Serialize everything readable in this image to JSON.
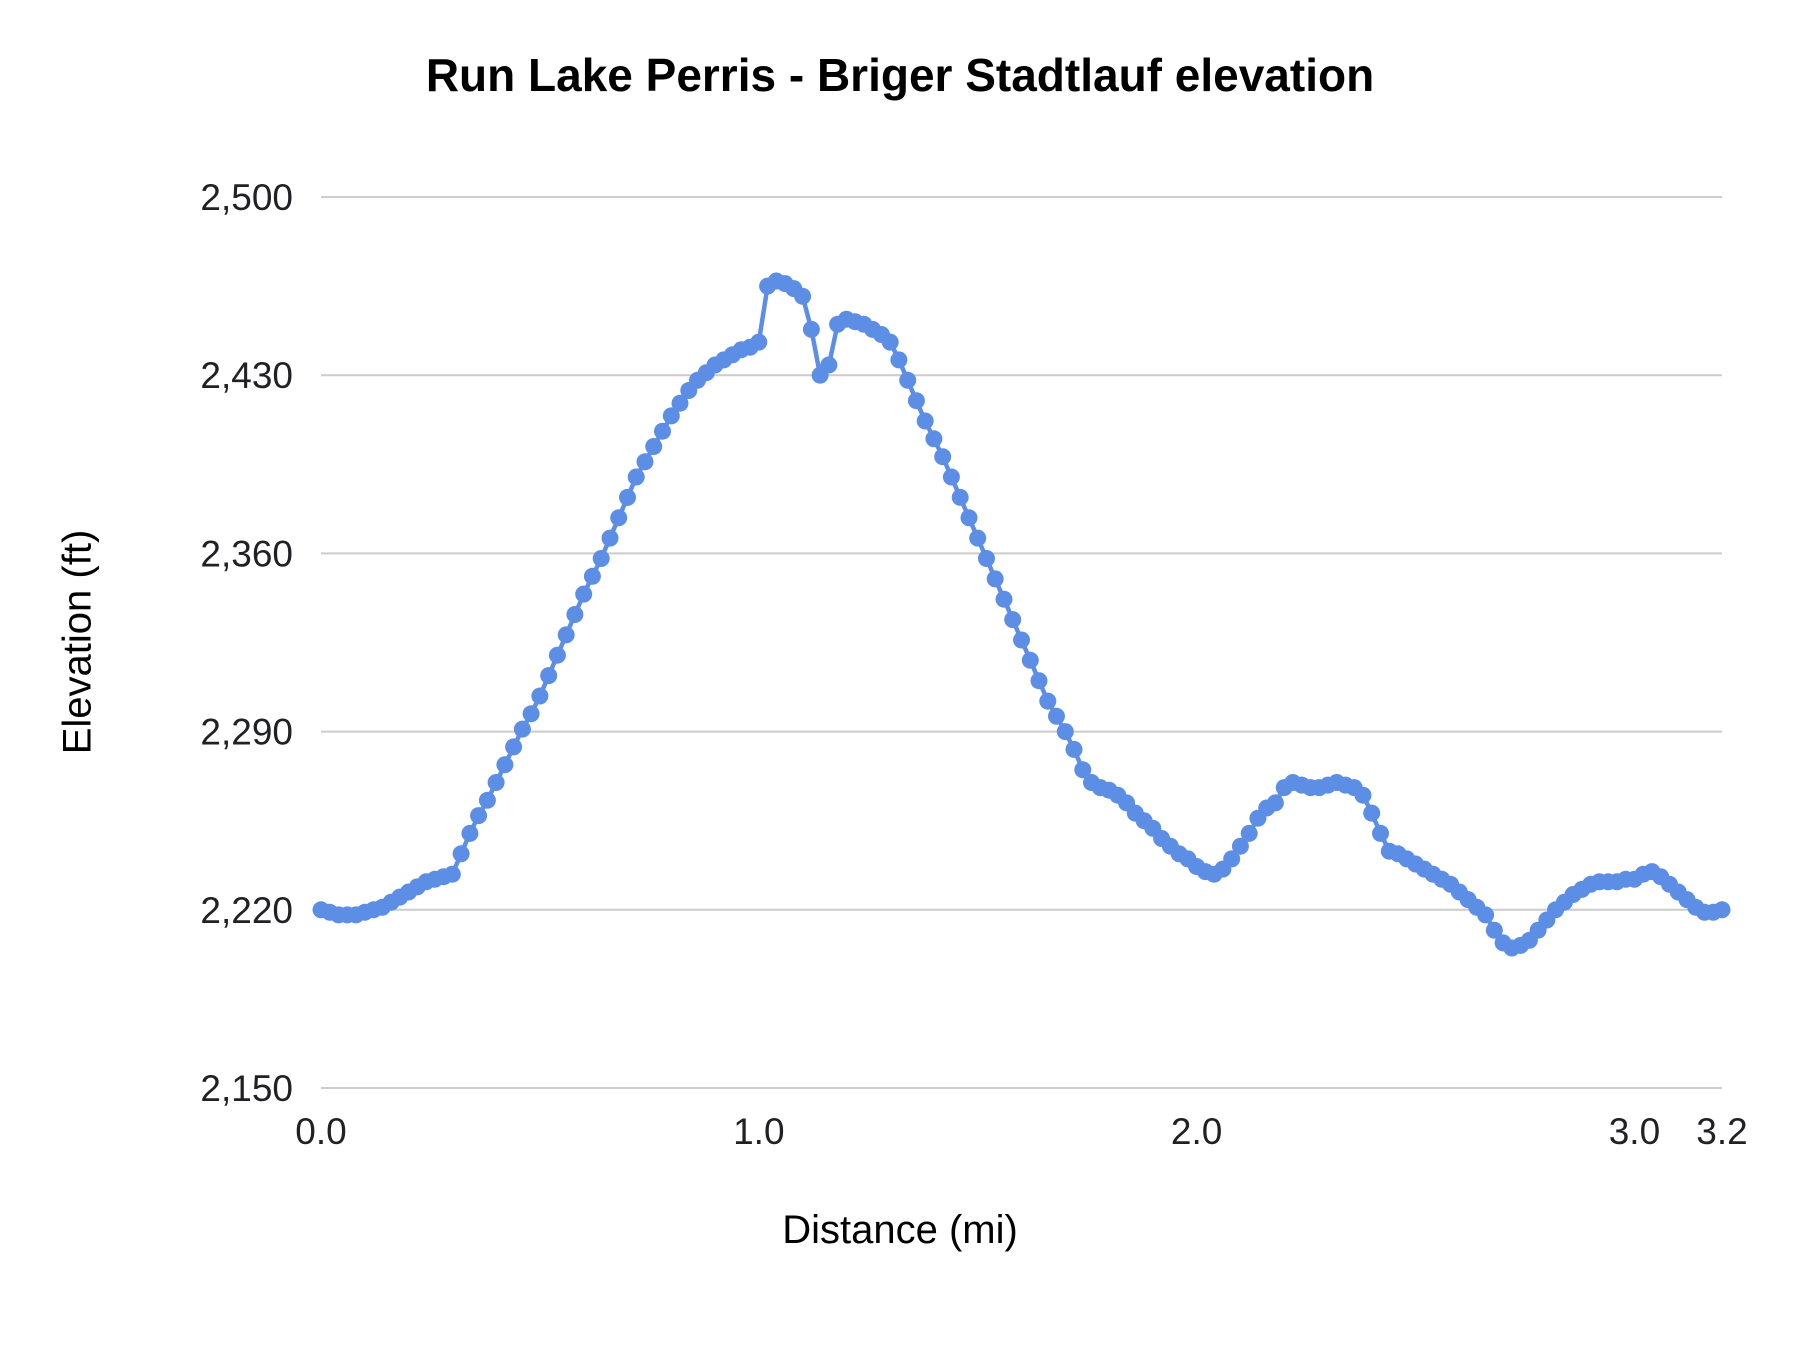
{
  "chart_data": {
    "type": "line",
    "title": "Run Lake Perris - Briger Stadtlauf elevation",
    "xlabel": "Distance (mi)",
    "ylabel": "Elevation (ft)",
    "xlim": [
      0,
      3.2
    ],
    "ylim": [
      2150,
      2500
    ],
    "grid": "horizontal",
    "legend": "none",
    "marker": "circle",
    "x_ticks": [
      {
        "v": 0.0,
        "label": "0.0"
      },
      {
        "v": 1.0,
        "label": "1.0"
      },
      {
        "v": 2.0,
        "label": "2.0"
      },
      {
        "v": 3.0,
        "label": "3.0"
      },
      {
        "v": 3.2,
        "label": "3.2"
      }
    ],
    "y_ticks": [
      {
        "v": 2150,
        "label": "2,150"
      },
      {
        "v": 2220,
        "label": "2,220"
      },
      {
        "v": 2290,
        "label": "2,290"
      },
      {
        "v": 2360,
        "label": "2,360"
      },
      {
        "v": 2430,
        "label": "2,430"
      },
      {
        "v": 2500,
        "label": "2,500"
      }
    ],
    "series": [
      {
        "name": "elevation",
        "color": "#5c8ee6",
        "points": [
          [
            0.0,
            2220
          ],
          [
            0.02,
            2219
          ],
          [
            0.04,
            2218
          ],
          [
            0.06,
            2218
          ],
          [
            0.08,
            2218
          ],
          [
            0.1,
            2219
          ],
          [
            0.12,
            2220
          ],
          [
            0.14,
            2221
          ],
          [
            0.16,
            2223
          ],
          [
            0.18,
            2225
          ],
          [
            0.2,
            2227
          ],
          [
            0.22,
            2229
          ],
          [
            0.24,
            2231
          ],
          [
            0.26,
            2232
          ],
          [
            0.28,
            2233
          ],
          [
            0.3,
            2234
          ],
          [
            0.32,
            2242
          ],
          [
            0.34,
            2250
          ],
          [
            0.36,
            2257
          ],
          [
            0.38,
            2263
          ],
          [
            0.4,
            2270
          ],
          [
            0.42,
            2277
          ],
          [
            0.44,
            2284
          ],
          [
            0.46,
            2291
          ],
          [
            0.48,
            2297
          ],
          [
            0.5,
            2304
          ],
          [
            0.52,
            2312
          ],
          [
            0.54,
            2320
          ],
          [
            0.56,
            2328
          ],
          [
            0.58,
            2336
          ],
          [
            0.6,
            2344
          ],
          [
            0.62,
            2351
          ],
          [
            0.64,
            2358
          ],
          [
            0.66,
            2366
          ],
          [
            0.68,
            2374
          ],
          [
            0.7,
            2382
          ],
          [
            0.72,
            2390
          ],
          [
            0.74,
            2396
          ],
          [
            0.76,
            2402
          ],
          [
            0.78,
            2408
          ],
          [
            0.8,
            2414
          ],
          [
            0.82,
            2419
          ],
          [
            0.84,
            2424
          ],
          [
            0.86,
            2428
          ],
          [
            0.88,
            2431
          ],
          [
            0.9,
            2434
          ],
          [
            0.92,
            2436
          ],
          [
            0.94,
            2438
          ],
          [
            0.96,
            2440
          ],
          [
            0.98,
            2441
          ],
          [
            1.0,
            2443
          ],
          [
            1.02,
            2465
          ],
          [
            1.04,
            2467
          ],
          [
            1.06,
            2466
          ],
          [
            1.08,
            2464
          ],
          [
            1.1,
            2461
          ],
          [
            1.12,
            2448
          ],
          [
            1.14,
            2430
          ],
          [
            1.16,
            2434
          ],
          [
            1.18,
            2450
          ],
          [
            1.2,
            2452
          ],
          [
            1.22,
            2451
          ],
          [
            1.24,
            2450
          ],
          [
            1.26,
            2448
          ],
          [
            1.28,
            2446
          ],
          [
            1.3,
            2443
          ],
          [
            1.32,
            2436
          ],
          [
            1.34,
            2428
          ],
          [
            1.36,
            2420
          ],
          [
            1.38,
            2412
          ],
          [
            1.4,
            2405
          ],
          [
            1.42,
            2398
          ],
          [
            1.44,
            2390
          ],
          [
            1.46,
            2382
          ],
          [
            1.48,
            2374
          ],
          [
            1.5,
            2366
          ],
          [
            1.52,
            2358
          ],
          [
            1.54,
            2350
          ],
          [
            1.56,
            2342
          ],
          [
            1.58,
            2334
          ],
          [
            1.6,
            2326
          ],
          [
            1.62,
            2318
          ],
          [
            1.64,
            2310
          ],
          [
            1.66,
            2302
          ],
          [
            1.68,
            2296
          ],
          [
            1.7,
            2290
          ],
          [
            1.72,
            2283
          ],
          [
            1.74,
            2275
          ],
          [
            1.76,
            2270
          ],
          [
            1.78,
            2268
          ],
          [
            1.8,
            2267
          ],
          [
            1.82,
            2265
          ],
          [
            1.84,
            2262
          ],
          [
            1.86,
            2258
          ],
          [
            1.88,
            2255
          ],
          [
            1.9,
            2252
          ],
          [
            1.92,
            2248
          ],
          [
            1.94,
            2245
          ],
          [
            1.96,
            2242
          ],
          [
            1.98,
            2240
          ],
          [
            2.0,
            2237
          ],
          [
            2.02,
            2235
          ],
          [
            2.04,
            2234
          ],
          [
            2.06,
            2236
          ],
          [
            2.08,
            2240
          ],
          [
            2.1,
            2245
          ],
          [
            2.12,
            2250
          ],
          [
            2.14,
            2256
          ],
          [
            2.16,
            2260
          ],
          [
            2.18,
            2262
          ],
          [
            2.2,
            2268
          ],
          [
            2.22,
            2270
          ],
          [
            2.24,
            2269
          ],
          [
            2.26,
            2268
          ],
          [
            2.28,
            2268
          ],
          [
            2.3,
            2269
          ],
          [
            2.32,
            2270
          ],
          [
            2.34,
            2269
          ],
          [
            2.36,
            2268
          ],
          [
            2.38,
            2265
          ],
          [
            2.4,
            2258
          ],
          [
            2.42,
            2250
          ],
          [
            2.44,
            2243
          ],
          [
            2.46,
            2242
          ],
          [
            2.48,
            2240
          ],
          [
            2.5,
            2238
          ],
          [
            2.52,
            2236
          ],
          [
            2.54,
            2234
          ],
          [
            2.56,
            2232
          ],
          [
            2.58,
            2230
          ],
          [
            2.6,
            2227
          ],
          [
            2.62,
            2224
          ],
          [
            2.64,
            2221
          ],
          [
            2.66,
            2218
          ],
          [
            2.68,
            2212
          ],
          [
            2.7,
            2207
          ],
          [
            2.72,
            2205
          ],
          [
            2.74,
            2206
          ],
          [
            2.76,
            2208
          ],
          [
            2.78,
            2212
          ],
          [
            2.8,
            2216
          ],
          [
            2.82,
            2220
          ],
          [
            2.84,
            2223
          ],
          [
            2.86,
            2226
          ],
          [
            2.88,
            2228
          ],
          [
            2.9,
            2230
          ],
          [
            2.92,
            2231
          ],
          [
            2.94,
            2231
          ],
          [
            2.96,
            2231
          ],
          [
            2.98,
            2232
          ],
          [
            3.0,
            2232
          ],
          [
            3.02,
            2234
          ],
          [
            3.04,
            2235
          ],
          [
            3.06,
            2233
          ],
          [
            3.08,
            2230
          ],
          [
            3.1,
            2227
          ],
          [
            3.12,
            2224
          ],
          [
            3.14,
            2221
          ],
          [
            3.16,
            2219
          ],
          [
            3.18,
            2219
          ],
          [
            3.2,
            2220
          ]
        ]
      }
    ]
  },
  "style": {
    "line_color": "#5c8ee6",
    "grid_color": "#cccccc",
    "tick_color": "#202124",
    "background": "#ffffff"
  }
}
